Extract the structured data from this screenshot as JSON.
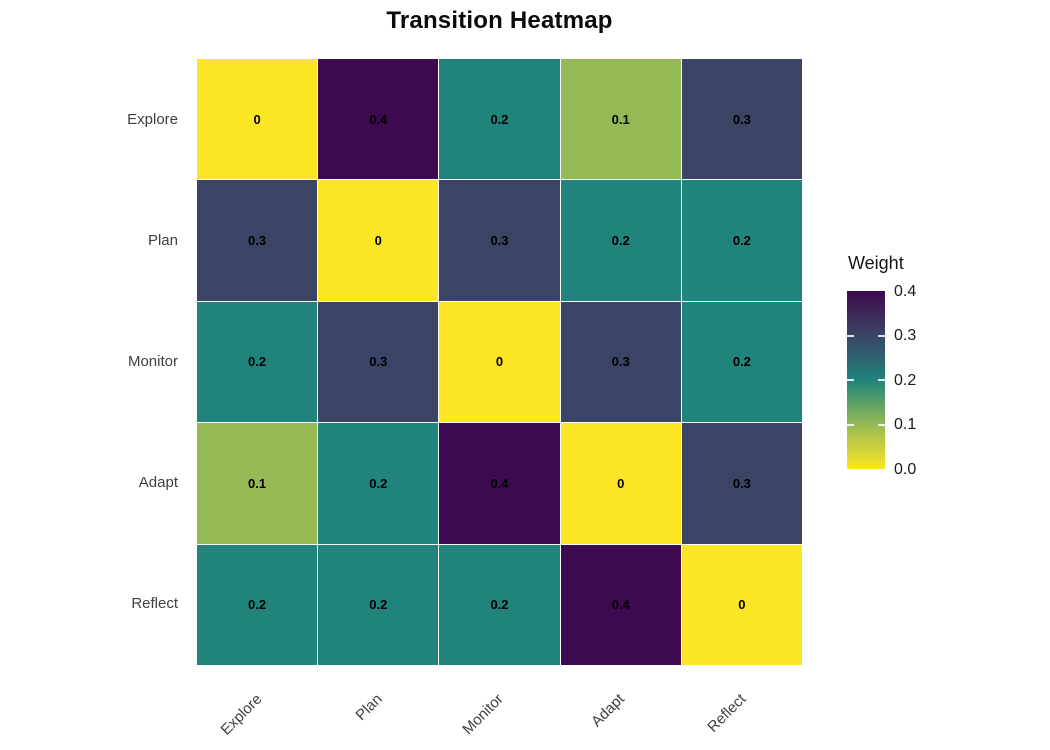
{
  "page": {
    "background_color": "#ffffff"
  },
  "chart_data": {
    "type": "heatmap",
    "title": "Transition Heatmap",
    "x_categories": [
      "Explore",
      "Plan",
      "Monitor",
      "Adapt",
      "Reflect"
    ],
    "y_categories": [
      "Explore",
      "Plan",
      "Monitor",
      "Adapt",
      "Reflect"
    ],
    "matrix": [
      [
        0,
        0.4,
        0.2,
        0.1,
        0.3
      ],
      [
        0.3,
        0,
        0.3,
        0.2,
        0.2
      ],
      [
        0.2,
        0.3,
        0,
        0.3,
        0.2
      ],
      [
        0.1,
        0.2,
        0.4,
        0,
        0.3
      ],
      [
        0.2,
        0.2,
        0.2,
        0.4,
        0
      ]
    ],
    "cell_labels": [
      [
        "0",
        "0.4",
        "0.2",
        "0.1",
        "0.3"
      ],
      [
        "0.3",
        "0",
        "0.3",
        "0.2",
        "0.2"
      ],
      [
        "0.2",
        "0.3",
        "0",
        "0.3",
        "0.2"
      ],
      [
        "0.1",
        "0.2",
        "0.4",
        "0",
        "0.3"
      ],
      [
        "0.2",
        "0.2",
        "0.2",
        "0.4",
        "0"
      ]
    ],
    "legend": {
      "title": "Weight",
      "tick_labels": [
        "0.4",
        "0.3",
        "0.2",
        "0.1",
        "0.0"
      ],
      "range": [
        0,
        0.4
      ],
      "position": "right"
    },
    "color_scale": {
      "name": "viridis-reversed",
      "stops": [
        {
          "value": 0.0,
          "color": "#FCE524"
        },
        {
          "value": 0.1,
          "color": "#95BA55"
        },
        {
          "value": 0.2,
          "color": "#20837C"
        },
        {
          "value": 0.3,
          "color": "#3B4464"
        },
        {
          "value": 0.4,
          "color": "#3E0A4F"
        }
      ]
    },
    "style": {
      "grid_line_color": "#FFFFFF",
      "cell_label_color": "#000000",
      "axis_text_color": "#404040",
      "title_color": "#0a0a0a"
    }
  }
}
